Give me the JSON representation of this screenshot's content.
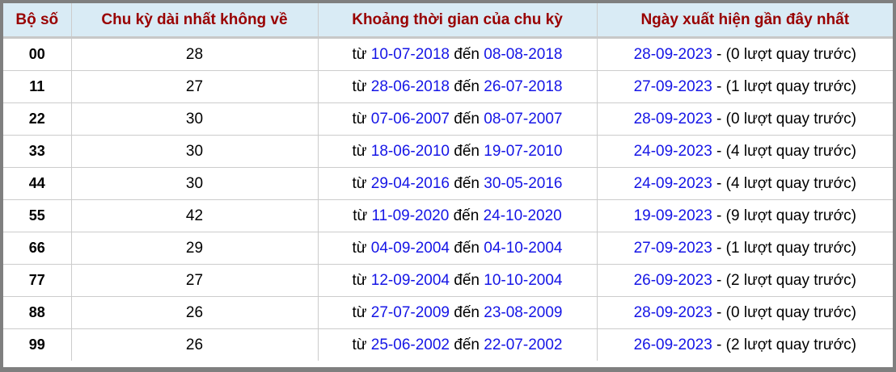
{
  "headers": [
    "Bộ số",
    "Chu kỳ dài nhất không về",
    "Khoảng thời gian của chu kỳ",
    "Ngày xuất hiện gần đây nhất"
  ],
  "labels": {
    "from": "từ",
    "to": "đến",
    "sep": " - ",
    "suffix": "lượt quay trước"
  },
  "colors": {
    "header_bg": "#d9ebf5",
    "header_text": "#990000",
    "link": "#1515e6",
    "frame": "#7f7f7f"
  },
  "rows": [
    {
      "pair": "00",
      "cycle": "28",
      "from": "10-07-2018",
      "to": "08-08-2018",
      "last": "28-09-2023",
      "ago": "(0 lượt quay trước)"
    },
    {
      "pair": "11",
      "cycle": "27",
      "from": "28-06-2018",
      "to": "26-07-2018",
      "last": "27-09-2023",
      "ago": "(1 lượt quay trước)"
    },
    {
      "pair": "22",
      "cycle": "30",
      "from": "07-06-2007",
      "to": "08-07-2007",
      "last": "28-09-2023",
      "ago": "(0 lượt quay trước)"
    },
    {
      "pair": "33",
      "cycle": "30",
      "from": "18-06-2010",
      "to": "19-07-2010",
      "last": "24-09-2023",
      "ago": "(4 lượt quay trước)"
    },
    {
      "pair": "44",
      "cycle": "30",
      "from": "29-04-2016",
      "to": "30-05-2016",
      "last": "24-09-2023",
      "ago": "(4 lượt quay trước)"
    },
    {
      "pair": "55",
      "cycle": "42",
      "from": "11-09-2020",
      "to": "24-10-2020",
      "last": "19-09-2023",
      "ago": "(9 lượt quay trước)"
    },
    {
      "pair": "66",
      "cycle": "29",
      "from": "04-09-2004",
      "to": "04-10-2004",
      "last": "27-09-2023",
      "ago": "(1 lượt quay trước)"
    },
    {
      "pair": "77",
      "cycle": "27",
      "from": "12-09-2004",
      "to": "10-10-2004",
      "last": "26-09-2023",
      "ago": "(2 lượt quay trước)"
    },
    {
      "pair": "88",
      "cycle": "26",
      "from": "27-07-2009",
      "to": "23-08-2009",
      "last": "28-09-2023",
      "ago": "(0 lượt quay trước)"
    },
    {
      "pair": "99",
      "cycle": "26",
      "from": "25-06-2002",
      "to": "22-07-2002",
      "last": "26-09-2023",
      "ago": "(2 lượt quay trước)"
    }
  ]
}
